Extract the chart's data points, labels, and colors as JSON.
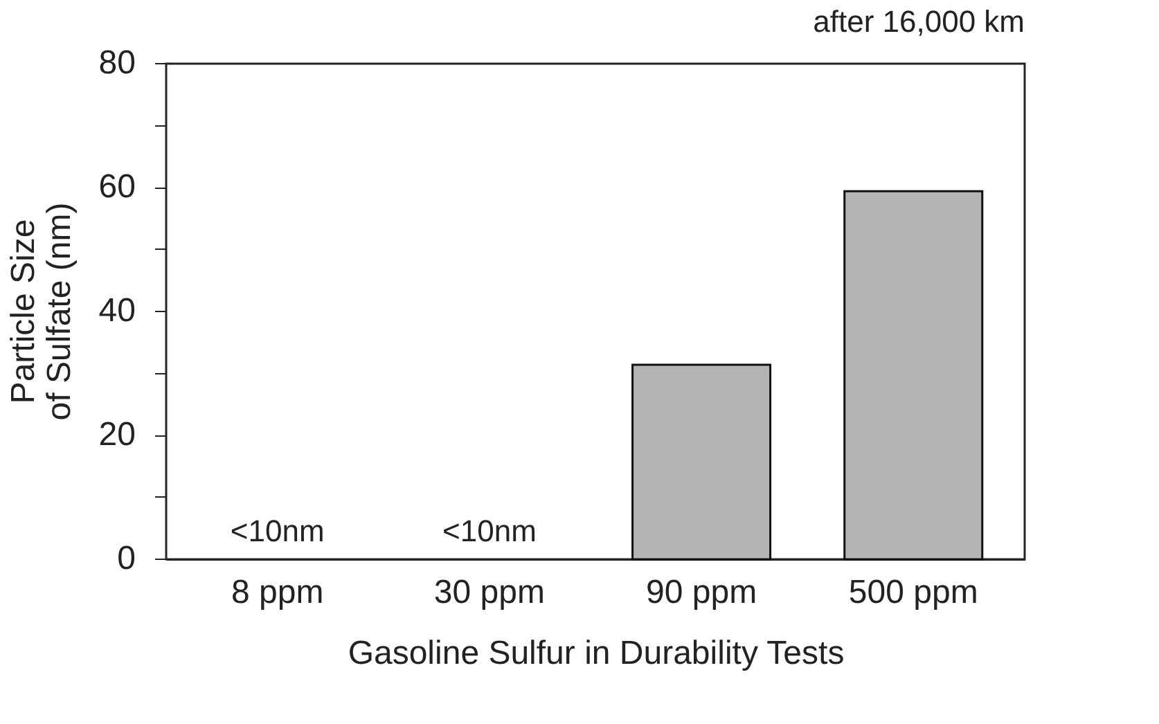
{
  "chart_data": {
    "type": "bar",
    "title": "after 16,000 km",
    "xlabel": "Gasoline Sulfur in Durability Tests",
    "ylabel": "Particle Size\nof Sulfate (nm)",
    "categories": [
      "8 ppm",
      "30 ppm",
      "90 ppm",
      "500 ppm"
    ],
    "values": [
      null,
      null,
      31.4,
      59.4
    ],
    "color": "#b4b4b4",
    "ylim": [
      0,
      80
    ],
    "yticks": [
      0,
      {
        "value": 10,
        "label": null
      },
      20,
      {
        "value": 30,
        "label": null
      },
      40,
      {
        "value": 50,
        "label": null
      },
      60,
      {
        "value": 70,
        "label": null
      },
      80
    ],
    "annotations": [
      "<10nm",
      "<10nm"
    ],
    "grid": false
  }
}
